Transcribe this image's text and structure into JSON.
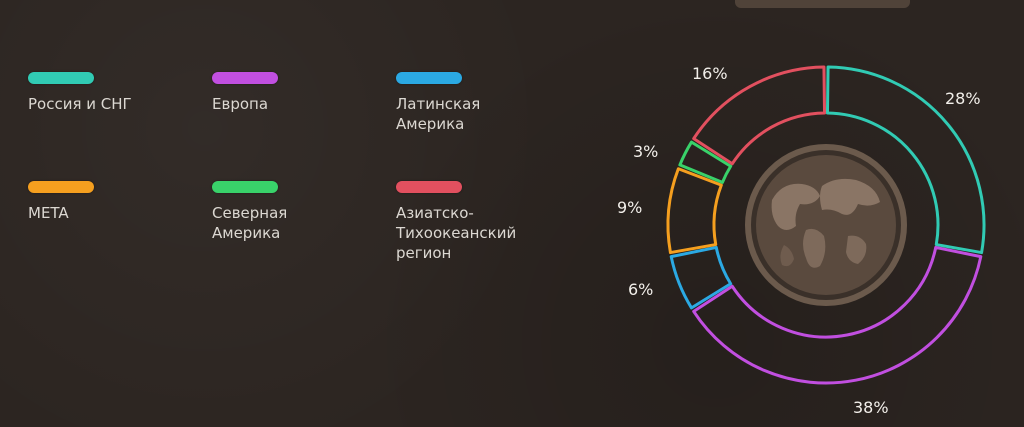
{
  "legend": [
    {
      "label": "Россия и СНГ",
      "color": "#31cbb4"
    },
    {
      "label": "Европа",
      "color": "#c14fe0"
    },
    {
      "label": "Латинская\nАмерика",
      "color": "#2ba9e3"
    },
    {
      "label": "META",
      "color": "#f59f1f"
    },
    {
      "label": "Северная\nАмерика",
      "color": "#39d26a"
    },
    {
      "label": "Азиатско-\nТихоокеанский\nрегион",
      "color": "#e2505f"
    }
  ],
  "chart_data": {
    "type": "donut",
    "categories": [
      "Россия и СНГ",
      "Европа",
      "Латинская Америка",
      "META",
      "Северная Америка",
      "Азиатско-Тихоокеанский регион"
    ],
    "values": [
      28,
      38,
      6,
      9,
      3,
      16
    ],
    "labels": [
      "28%",
      "38%",
      "6%",
      "9%",
      "3%",
      "16%"
    ],
    "colors": [
      "#31cbb4",
      "#c14fe0",
      "#2ba9e3",
      "#f59f1f",
      "#39d26a",
      "#e2505f"
    ],
    "center_image": "world-globe"
  }
}
